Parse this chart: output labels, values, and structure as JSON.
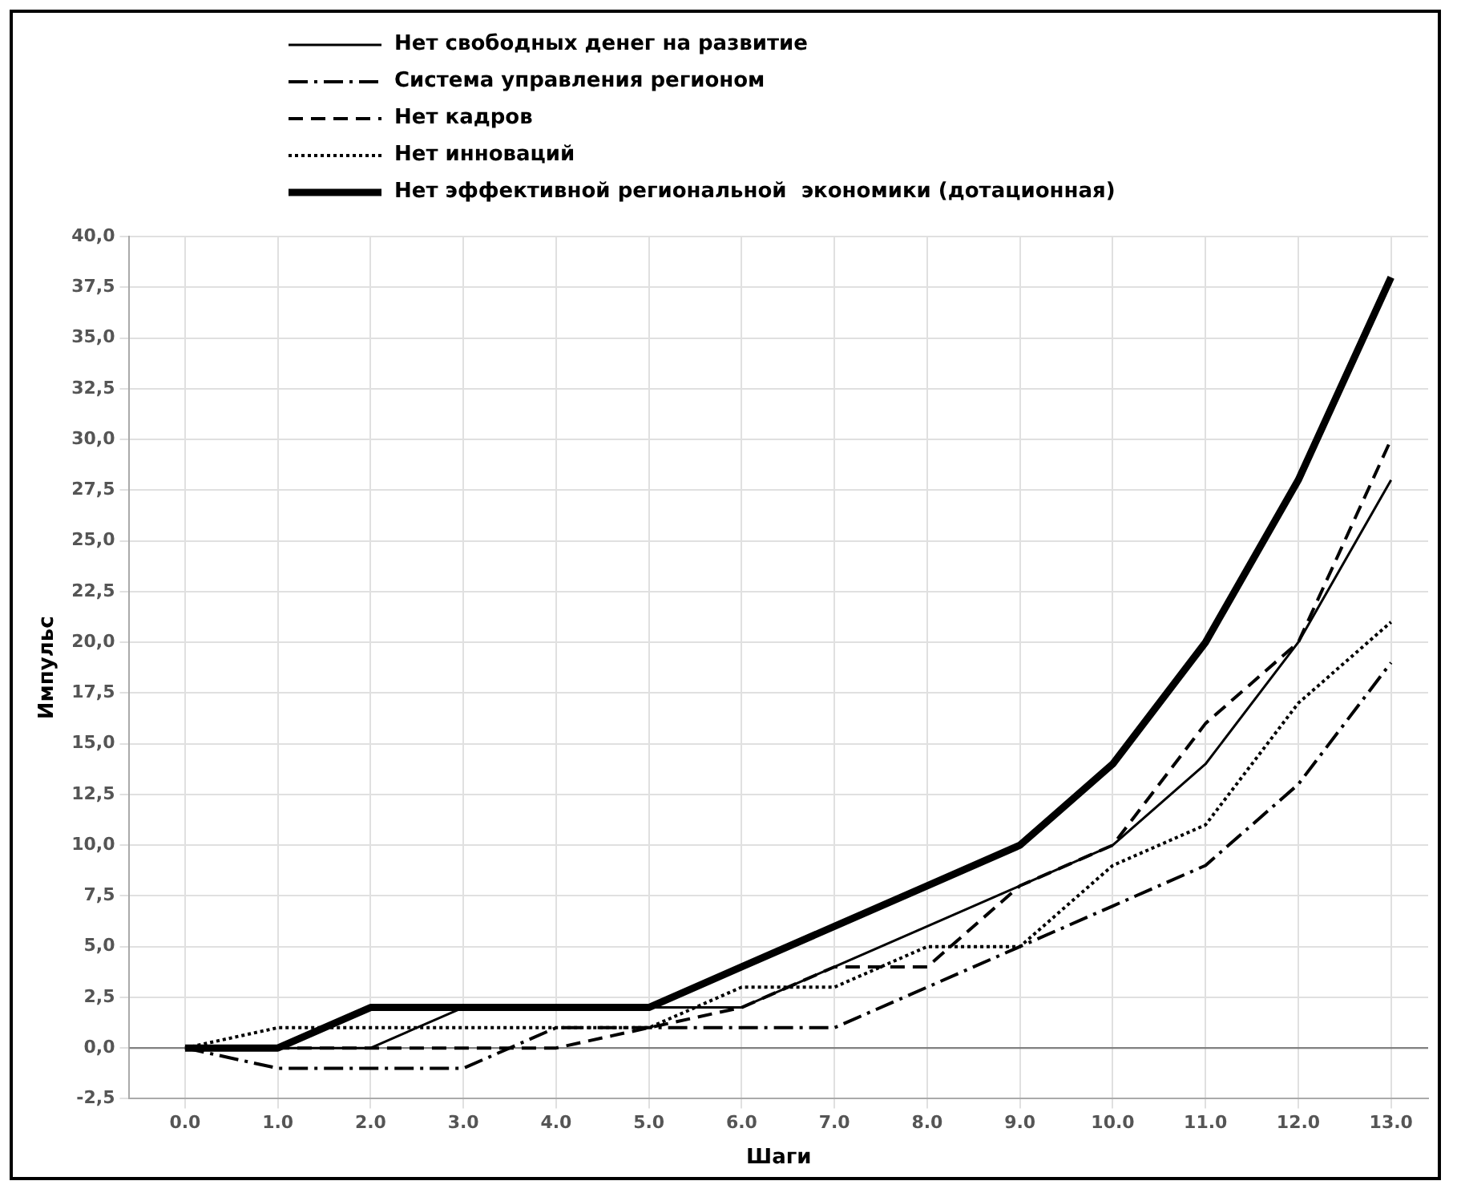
{
  "chart_data": {
    "type": "line",
    "xlabel": "Шаги",
    "ylabel": "Импульс",
    "x": [
      0,
      1,
      2,
      3,
      4,
      5,
      6,
      7,
      8,
      9,
      10,
      11,
      12,
      13
    ],
    "xlim": [
      -0.6,
      13.4
    ],
    "xticks": [
      {
        "value": 0,
        "label": "0.0"
      },
      {
        "value": 1,
        "label": "1.0"
      },
      {
        "value": 2,
        "label": "2.0"
      },
      {
        "value": 3,
        "label": "3.0"
      },
      {
        "value": 4,
        "label": "4.0"
      },
      {
        "value": 5,
        "label": "5.0"
      },
      {
        "value": 6,
        "label": "6.0"
      },
      {
        "value": 7,
        "label": "7.0"
      },
      {
        "value": 8,
        "label": "8.0"
      },
      {
        "value": 9,
        "label": "9.0"
      },
      {
        "value": 10,
        "label": "10.0"
      },
      {
        "value": 11,
        "label": "11.0"
      },
      {
        "value": 12,
        "label": "12.0"
      },
      {
        "value": 13,
        "label": "13.0"
      }
    ],
    "ylim": [
      -2.5,
      40
    ],
    "yticks": [
      {
        "value": -2.5,
        "label": "-2,5"
      },
      {
        "value": 0,
        "label": "0,0"
      },
      {
        "value": 2.5,
        "label": "2,5"
      },
      {
        "value": 5,
        "label": "5,0"
      },
      {
        "value": 7.5,
        "label": "7,5"
      },
      {
        "value": 10,
        "label": "10,0"
      },
      {
        "value": 12.5,
        "label": "12,5"
      },
      {
        "value": 15,
        "label": "15,0"
      },
      {
        "value": 17.5,
        "label": "17,5"
      },
      {
        "value": 20,
        "label": "20,0"
      },
      {
        "value": 22.5,
        "label": "22,5"
      },
      {
        "value": 25,
        "label": "25,0"
      },
      {
        "value": 27.5,
        "label": "27,5"
      },
      {
        "value": 30,
        "label": "30,0"
      },
      {
        "value": 32.5,
        "label": "32,5"
      },
      {
        "value": 35,
        "label": "35,0"
      },
      {
        "value": 37.5,
        "label": "37,5"
      },
      {
        "value": 40,
        "label": "40,0"
      }
    ],
    "grid": true,
    "legend": "top left",
    "marker": "none",
    "ref_lines": [
      {
        "axis": "y",
        "value": 0,
        "color": "#808080",
        "line_style": "solid"
      }
    ],
    "series": [
      {
        "name": "Нет свободных денег на развитие",
        "color": "#000000",
        "line_style": "solid",
        "values": [
          0,
          0,
          0,
          2,
          2,
          2,
          2,
          4,
          6,
          8,
          10,
          14,
          20,
          28
        ]
      },
      {
        "name": "Система управления регионом",
        "color": "#000000",
        "line_style": "dashdot",
        "values": [
          0,
          -1,
          -1,
          -1,
          1,
          1,
          1,
          1,
          3,
          5,
          7,
          9,
          13,
          19
        ]
      },
      {
        "name": "Нет кадров",
        "color": "#000000",
        "line_style": "dashed",
        "values": [
          0,
          0,
          0,
          0,
          0,
          1,
          2,
          4,
          4,
          8,
          10,
          16,
          20,
          30
        ]
      },
      {
        "name": "Нет инноваций",
        "color": "#000000",
        "line_style": "dotted",
        "values": [
          0,
          1,
          1,
          1,
          1,
          1,
          3,
          3,
          5,
          5,
          9,
          11,
          17,
          21
        ]
      },
      {
        "name": "Нет эффективной региональной  экономики (дотационная)",
        "color": "#000000",
        "line_style": "solid",
        "values": [
          0,
          0,
          2,
          2,
          2,
          2,
          4,
          6,
          8,
          10,
          14,
          20,
          28,
          38
        ]
      }
    ]
  }
}
